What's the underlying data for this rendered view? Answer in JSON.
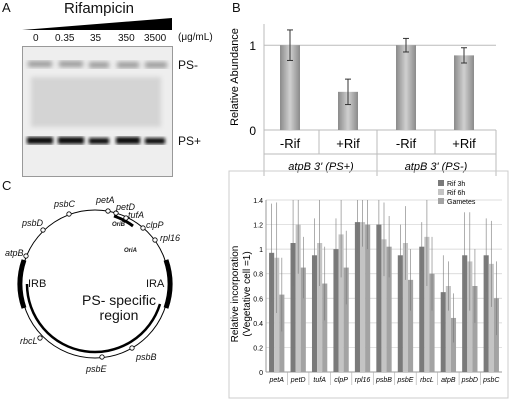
{
  "panels": {
    "A": {
      "letter": "A",
      "title": "Rifampicin",
      "concentrations": [
        "0",
        "0.35",
        "35",
        "350",
        "3500"
      ],
      "unit": "(μg/mL)",
      "band_labels": [
        "PS-",
        "PS+"
      ]
    },
    "B": {
      "letter": "B",
      "ylabel": "Relative Abundance",
      "yticks": [
        "0",
        "1"
      ],
      "bar_labels": [
        "-Rif",
        "+Rif",
        "-Rif",
        "+Rif"
      ],
      "group_labels": [
        "atpB 3' (PS+)",
        "atpB 3' (PS-)"
      ]
    },
    "C": {
      "letter": "C",
      "genes": [
        "psbC",
        "petA",
        "petD",
        "tufA",
        "clpP",
        "rpl16",
        "psbD",
        "atpB",
        "rbcL",
        "psbE",
        "psbB"
      ],
      "origins": [
        "OriB",
        "OriA"
      ],
      "ir_labels": [
        "IRB",
        "IRA"
      ],
      "region_label": "PS- specific region"
    }
  },
  "chart_data": [
    {
      "type": "bar",
      "categories": [
        "-Rif",
        "+Rif",
        "-Rif",
        "+Rif"
      ],
      "values": [
        1.0,
        0.45,
        1.0,
        0.88
      ],
      "errors": [
        0.18,
        0.15,
        0.08,
        0.09
      ],
      "ylim": [
        0,
        1.25
      ],
      "ylabel": "Relative Abundance",
      "xlabel": "",
      "title": ""
    },
    {
      "type": "bar",
      "categories": [
        "petA",
        "petD",
        "tufA",
        "clpP",
        "rpl16",
        "psbB",
        "psbE",
        "rbcL",
        "atpB",
        "psbD",
        "psbC"
      ],
      "series": [
        {
          "name": "Rif 3h",
          "color": "#7a7a7a",
          "values": [
            0.97,
            1.05,
            0.95,
            1.0,
            1.22,
            1.2,
            0.95,
            1.02,
            0.65,
            0.95,
            0.95
          ],
          "errors": [
            0.4,
            0.35,
            0.3,
            0.25,
            0.25,
            0.2,
            0.25,
            0.2,
            0.3,
            0.35,
            0.3
          ]
        },
        {
          "name": "Rif 6h",
          "color": "#c4c4c4",
          "values": [
            0.93,
            1.2,
            1.05,
            1.12,
            1.22,
            1.08,
            1.05,
            1.1,
            0.7,
            0.9,
            0.88
          ],
          "errors": [
            0.45,
            0.4,
            0.35,
            0.35,
            0.2,
            0.3,
            0.3,
            0.4,
            0.2,
            0.4,
            0.35
          ]
        },
        {
          "name": "Gametes",
          "color": "#a3a3a3",
          "values": [
            0.63,
            0.85,
            0.72,
            0.85,
            1.2,
            1.02,
            0.75,
            0.8,
            0.44,
            0.7,
            0.6
          ],
          "errors": [
            0.3,
            0.25,
            0.3,
            0.3,
            0.2,
            0.25,
            0.25,
            0.3,
            0.2,
            0.3,
            0.3
          ]
        }
      ],
      "yticks": [
        "0",
        "0.2",
        "0.4",
        "0.6",
        "0.8",
        "1",
        "1.2",
        "1.4"
      ],
      "ylim": [
        0,
        1.4
      ],
      "ylabel": "Relative incorporation\n(Vegetative cell =1)",
      "xlabel": "",
      "title": ""
    }
  ]
}
